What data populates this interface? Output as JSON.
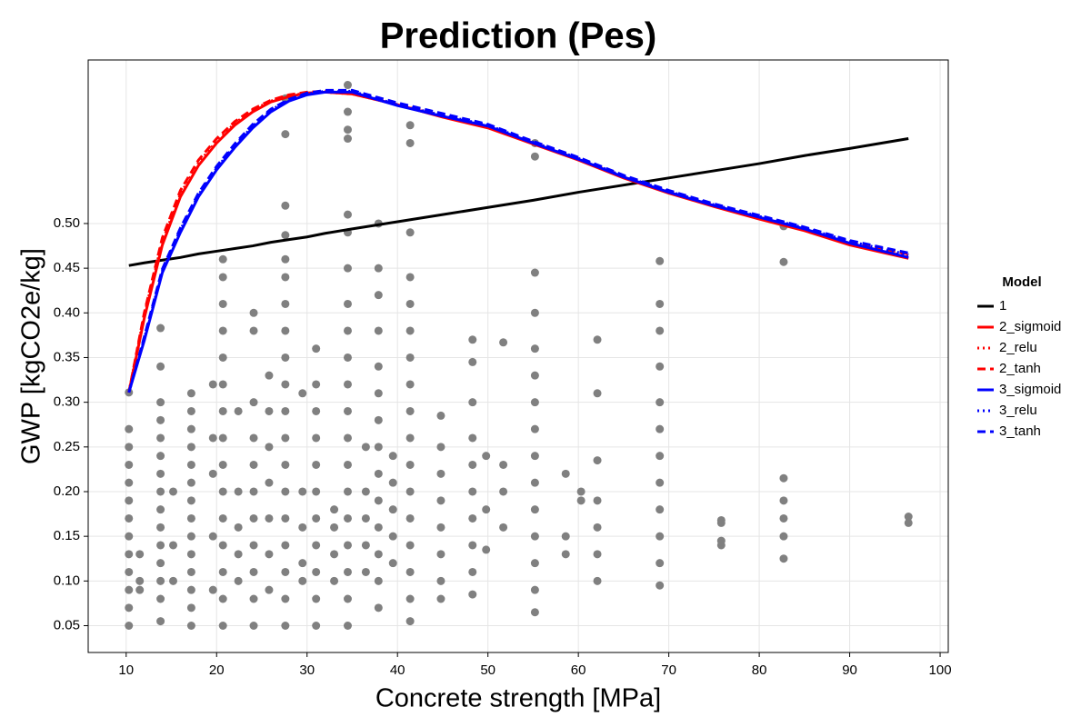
{
  "chart_data": {
    "type": "line",
    "title": "Prediction (Pes)",
    "xlabel": "Concrete strength [MPa]",
    "ylabel": "GWP [kgCO2e/kg]",
    "legend_title": "Model",
    "legend": "right",
    "grid": true,
    "xlim": [
      5.8,
      100.9
    ],
    "ylim": [
      0.02,
      0.683
    ],
    "xticks": [
      10,
      20,
      30,
      40,
      50,
      60,
      70,
      80,
      90,
      100
    ],
    "yticks": [
      0.05,
      {
        "value": 0.1,
        "label": "0.10"
      },
      0.15,
      {
        "value": 0.2,
        "label": "0.20"
      },
      0.25,
      {
        "value": 0.3,
        "label": "0.30"
      },
      0.35,
      {
        "value": 0.4,
        "label": "0.40"
      },
      0.45,
      {
        "value": 0.5,
        "label": "0.50"
      }
    ],
    "points": {
      "color": "#808080",
      "groups": [
        {
          "x": 10.3,
          "y": [
            0.05,
            0.07,
            0.09,
            0.11,
            0.13,
            0.15,
            0.17,
            0.19,
            0.21,
            0.23,
            0.25,
            0.27,
            0.311
          ]
        },
        {
          "x": 11.5,
          "y": [
            0.09,
            0.1,
            0.13
          ]
        },
        {
          "x": 13.8,
          "y": [
            0.055,
            0.08,
            0.1,
            0.12,
            0.14,
            0.16,
            0.18,
            0.2,
            0.22,
            0.24,
            0.26,
            0.28,
            0.3,
            0.34,
            0.383
          ]
        },
        {
          "x": 15.2,
          "y": [
            0.1,
            0.14,
            0.2
          ]
        },
        {
          "x": 17.2,
          "y": [
            0.05,
            0.07,
            0.09,
            0.11,
            0.13,
            0.15,
            0.17,
            0.19,
            0.21,
            0.23,
            0.25,
            0.27,
            0.29,
            0.31
          ]
        },
        {
          "x": 19.6,
          "y": [
            0.09,
            0.15,
            0.22,
            0.26,
            0.32
          ]
        },
        {
          "x": 20.7,
          "y": [
            0.05,
            0.08,
            0.11,
            0.14,
            0.17,
            0.2,
            0.23,
            0.26,
            0.29,
            0.32,
            0.35,
            0.38,
            0.41,
            0.44,
            0.46
          ]
        },
        {
          "x": 22.4,
          "y": [
            0.1,
            0.13,
            0.16,
            0.2,
            0.29
          ]
        },
        {
          "x": 24.1,
          "y": [
            0.05,
            0.08,
            0.11,
            0.14,
            0.17,
            0.2,
            0.23,
            0.26,
            0.3,
            0.38,
            0.4
          ]
        },
        {
          "x": 25.8,
          "y": [
            0.09,
            0.13,
            0.17,
            0.21,
            0.25,
            0.29,
            0.33
          ]
        },
        {
          "x": 27.6,
          "y": [
            0.05,
            0.08,
            0.11,
            0.14,
            0.17,
            0.2,
            0.23,
            0.26,
            0.29,
            0.32,
            0.35,
            0.38,
            0.41,
            0.44,
            0.46,
            0.487,
            0.52,
            0.6,
            0.64
          ]
        },
        {
          "x": 29.5,
          "y": [
            0.1,
            0.12,
            0.16,
            0.2,
            0.31
          ]
        },
        {
          "x": 31,
          "y": [
            0.05,
            0.08,
            0.11,
            0.14,
            0.17,
            0.2,
            0.23,
            0.26,
            0.29,
            0.32,
            0.36
          ]
        },
        {
          "x": 33,
          "y": [
            0.1,
            0.13,
            0.16,
            0.18
          ]
        },
        {
          "x": 34.5,
          "y": [
            0.05,
            0.08,
            0.11,
            0.14,
            0.17,
            0.2,
            0.23,
            0.26,
            0.29,
            0.32,
            0.35,
            0.38,
            0.41,
            0.45,
            0.49,
            0.51,
            0.595,
            0.605,
            0.625,
            0.655
          ]
        },
        {
          "x": 36.5,
          "y": [
            0.11,
            0.14,
            0.17,
            0.2,
            0.25
          ]
        },
        {
          "x": 37.9,
          "y": [
            0.07,
            0.1,
            0.13,
            0.16,
            0.19,
            0.22,
            0.25,
            0.28,
            0.31,
            0.34,
            0.38,
            0.42,
            0.45,
            0.5
          ]
        },
        {
          "x": 39.5,
          "y": [
            0.12,
            0.15,
            0.18,
            0.21,
            0.24
          ]
        },
        {
          "x": 41.4,
          "y": [
            0.055,
            0.08,
            0.11,
            0.14,
            0.17,
            0.2,
            0.23,
            0.26,
            0.29,
            0.32,
            0.35,
            0.38,
            0.41,
            0.44,
            0.49,
            0.59,
            0.61
          ]
        },
        {
          "x": 44.8,
          "y": [
            0.08,
            0.1,
            0.13,
            0.16,
            0.19,
            0.22,
            0.25,
            0.285
          ]
        },
        {
          "x": 48.3,
          "y": [
            0.085,
            0.11,
            0.14,
            0.17,
            0.2,
            0.23,
            0.26,
            0.3,
            0.345,
            0.37
          ]
        },
        {
          "x": 49.8,
          "y": [
            0.135,
            0.18,
            0.24
          ]
        },
        {
          "x": 51.7,
          "y": [
            0.16,
            0.2,
            0.23,
            0.367
          ]
        },
        {
          "x": 55.2,
          "y": [
            0.065,
            0.09,
            0.12,
            0.15,
            0.18,
            0.21,
            0.24,
            0.27,
            0.3,
            0.33,
            0.36,
            0.4,
            0.445,
            0.575,
            0.59
          ]
        },
        {
          "x": 58.6,
          "y": [
            0.13,
            0.15,
            0.22
          ]
        },
        {
          "x": 60.3,
          "y": [
            0.19,
            0.2
          ]
        },
        {
          "x": 62.1,
          "y": [
            0.1,
            0.13,
            0.16,
            0.19,
            0.235,
            0.31,
            0.37
          ]
        },
        {
          "x": 69,
          "y": [
            0.095,
            0.12,
            0.15,
            0.18,
            0.21,
            0.24,
            0.27,
            0.3,
            0.34,
            0.38,
            0.41,
            0.458
          ]
        },
        {
          "x": 75.8,
          "y": [
            0.14,
            0.145,
            0.165,
            0.168
          ]
        },
        {
          "x": 82.7,
          "y": [
            0.125,
            0.15,
            0.17,
            0.19,
            0.215,
            0.457,
            0.497
          ]
        },
        {
          "x": 96.5,
          "y": [
            0.165,
            0.172
          ]
        }
      ]
    },
    "x": [
      10.3,
      12,
      14,
      16,
      18,
      20,
      22,
      24,
      26,
      28,
      30,
      32,
      35,
      40,
      45,
      50,
      55,
      60,
      65,
      70,
      75,
      80,
      85,
      90,
      96.5
    ],
    "series": [
      {
        "name": "1",
        "color": "#000000",
        "dash": "solid",
        "values": [
          0.453,
          0.456,
          0.459,
          0.462,
          0.466,
          0.469,
          0.472,
          0.475,
          0.479,
          0.482,
          0.485,
          0.489,
          0.494,
          0.502,
          0.51,
          0.518,
          0.526,
          0.535,
          0.543,
          0.551,
          0.559,
          0.567,
          0.576,
          0.584,
          0.595
        ]
      },
      {
        "name": "2_sigmoid",
        "color": "#ff0000",
        "dash": "solid",
        "values": [
          0.311,
          0.394,
          0.476,
          0.53,
          0.565,
          0.59,
          0.61,
          0.625,
          0.636,
          0.642,
          0.646,
          0.647,
          0.645,
          0.633,
          0.619,
          0.607,
          0.589,
          0.571,
          0.551,
          0.534,
          0.519,
          0.505,
          0.492,
          0.476,
          0.461
        ]
      },
      {
        "name": "2_relu",
        "color": "#ff0000",
        "dash": "dot",
        "values": [
          0.311,
          0.398,
          0.48,
          0.533,
          0.568,
          0.592,
          0.612,
          0.627,
          0.637,
          0.643,
          0.646,
          0.647,
          0.645,
          0.633,
          0.62,
          0.608,
          0.59,
          0.572,
          0.552,
          0.535,
          0.52,
          0.506,
          0.493,
          0.477,
          0.463
        ]
      },
      {
        "name": "2_tanh",
        "color": "#ff0000",
        "dash": "dash",
        "values": [
          0.311,
          0.4,
          0.484,
          0.537,
          0.571,
          0.595,
          0.614,
          0.628,
          0.638,
          0.644,
          0.647,
          0.648,
          0.646,
          0.634,
          0.621,
          0.609,
          0.591,
          0.573,
          0.553,
          0.536,
          0.521,
          0.507,
          0.494,
          0.479,
          0.466
        ]
      },
      {
        "name": "3_sigmoid",
        "color": "#0000ff",
        "dash": "solid",
        "values": [
          0.311,
          0.369,
          0.445,
          0.49,
          0.53,
          0.56,
          0.585,
          0.607,
          0.625,
          0.637,
          0.644,
          0.647,
          0.647,
          0.632,
          0.62,
          0.609,
          0.59,
          0.572,
          0.552,
          0.535,
          0.52,
          0.507,
          0.494,
          0.478,
          0.462
        ]
      },
      {
        "name": "3_relu",
        "color": "#0000ff",
        "dash": "dot",
        "values": [
          0.311,
          0.371,
          0.447,
          0.493,
          0.532,
          0.562,
          0.587,
          0.609,
          0.627,
          0.638,
          0.645,
          0.648,
          0.648,
          0.633,
          0.621,
          0.61,
          0.591,
          0.573,
          0.553,
          0.536,
          0.521,
          0.508,
          0.495,
          0.48,
          0.465
        ]
      },
      {
        "name": "3_tanh",
        "color": "#0000ff",
        "dash": "dash",
        "values": [
          0.311,
          0.373,
          0.449,
          0.495,
          0.534,
          0.564,
          0.589,
          0.611,
          0.628,
          0.639,
          0.646,
          0.649,
          0.649,
          0.635,
          0.623,
          0.611,
          0.592,
          0.574,
          0.554,
          0.537,
          0.522,
          0.509,
          0.496,
          0.481,
          0.467
        ]
      }
    ]
  }
}
